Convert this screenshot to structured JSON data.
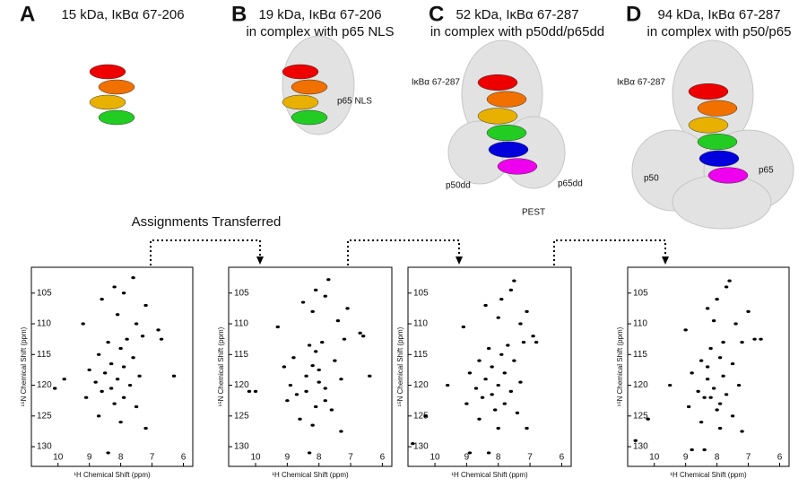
{
  "figure": {
    "annotation": "Assignments Transferred",
    "panels": [
      {
        "letter": "A",
        "title": [
          "15 kDa, IκBα 67-206"
        ],
        "labels": []
      },
      {
        "letter": "B",
        "title": [
          "19 kDa, IκBα 67-206",
          "in complex with p65 NLS"
        ],
        "labels": [
          "p65 NLS"
        ]
      },
      {
        "letter": "C",
        "title": [
          "52 kDa, IκBα 67-287",
          "in complex with p50dd/p65dd"
        ],
        "labels": [
          "IκBα 67-287",
          "p50dd",
          "p65dd",
          "PEST"
        ]
      },
      {
        "letter": "D",
        "title": [
          "94 kDa, IκBα 67-287",
          "in complex with p50/p65"
        ],
        "labels": [
          "IκBα 67-287",
          "p50",
          "p65"
        ]
      }
    ],
    "spectra": [
      {
        "type": "scatter",
        "xlabel": "¹H Chemical Shift (ppm)",
        "ylabel": "¹⁵N Chemical Shift (ppm)",
        "xlim": [
          10.85,
          5.7
        ],
        "ylim": [
          133.2,
          100.8
        ],
        "xticks": [
          10,
          9,
          8,
          7,
          6
        ],
        "yticks": [
          105,
          110,
          115,
          120,
          125,
          130
        ],
        "x": [
          7.6,
          8.2,
          7.9,
          8.6,
          7.2,
          8.1,
          9.2,
          7.5,
          6.8,
          6.7,
          7.3,
          7.8,
          8.4,
          8.0,
          8.7,
          7.6,
          8.3,
          7.9,
          9.0,
          8.5,
          7.4,
          8.1,
          8.8,
          9.8,
          7.7,
          8.3,
          8.6,
          7.9,
          9.1,
          8.2,
          7.5,
          8.7,
          8.0,
          7.2,
          8.4,
          10.1,
          6.3
        ],
        "y": [
          102.5,
          104,
          105,
          106,
          107,
          108.5,
          110,
          110,
          111,
          112.5,
          112,
          112.5,
          113,
          114,
          115,
          115.5,
          116.5,
          117,
          117.5,
          118,
          118.5,
          119,
          119.5,
          119,
          120,
          120.5,
          121,
          122,
          122,
          123,
          123.5,
          125,
          126,
          127,
          131,
          120.5,
          118.5
        ]
      },
      {
        "type": "scatter",
        "xlabel": "¹H Chemical Shift (ppm)",
        "ylabel": "¹⁵N Chemical Shift (ppm)",
        "xlim": [
          10.85,
          5.7
        ],
        "ylim": [
          133.2,
          100.8
        ],
        "xticks": [
          10,
          9,
          8,
          7,
          6
        ],
        "yticks": [
          105,
          110,
          115,
          120,
          125,
          130
        ],
        "x": [
          7.7,
          8.1,
          7.8,
          8.5,
          7.1,
          8.2,
          9.3,
          7.4,
          6.7,
          6.6,
          7.2,
          7.9,
          8.3,
          8.1,
          8.8,
          7.5,
          8.2,
          8.0,
          9.1,
          8.4,
          7.3,
          8.0,
          8.9,
          10.0,
          7.8,
          8.4,
          8.7,
          7.8,
          9.0,
          8.1,
          7.6,
          8.6,
          8.2,
          7.3,
          8.3,
          10.2,
          6.4
        ],
        "y": [
          102.8,
          104.5,
          105.5,
          106.5,
          107.5,
          108,
          110.5,
          109.5,
          111.5,
          112,
          112.5,
          113,
          113.5,
          114.5,
          115.5,
          116,
          116.8,
          117.5,
          117,
          118.5,
          119,
          119.5,
          120,
          121,
          120.5,
          121,
          121.5,
          122.5,
          122.5,
          123.5,
          124,
          125.5,
          126.5,
          127.5,
          131,
          121,
          118.5
        ]
      },
      {
        "type": "scatter",
        "xlabel": "¹H Chemical Shift (ppm)",
        "ylabel": "¹⁵N Chemical Shift (ppm)",
        "xlim": [
          10.85,
          5.7
        ],
        "ylim": [
          133.2,
          100.8
        ],
        "xticks": [
          10,
          9,
          8,
          7,
          6
        ],
        "yticks": [
          105,
          110,
          115,
          120,
          125,
          130
        ],
        "x": [
          7.5,
          7.6,
          7.9,
          8.4,
          7.1,
          8.0,
          9.1,
          7.3,
          6.9,
          6.8,
          7.2,
          7.7,
          8.3,
          7.9,
          8.6,
          7.5,
          8.2,
          7.8,
          8.9,
          8.4,
          7.3,
          8.0,
          8.7,
          9.6,
          7.6,
          8.2,
          8.5,
          7.8,
          9.0,
          8.1,
          7.4,
          8.6,
          8.0,
          7.1,
          8.3,
          10.7,
          10.3,
          8.9
        ],
        "y": [
          103,
          104.5,
          106,
          107,
          108,
          109,
          110.5,
          110,
          112,
          113,
          113,
          113.5,
          114,
          115,
          116,
          116,
          117,
          118,
          118,
          119,
          119.5,
          120,
          120.5,
          120,
          121,
          121.5,
          122,
          123,
          123,
          124,
          124.5,
          125.5,
          127,
          127,
          131,
          129.5,
          125,
          131
        ]
      },
      {
        "type": "scatter",
        "xlabel": "¹H Chemical Shift (ppm)",
        "ylabel": "¹⁵N Chemical Shift (ppm)",
        "xlim": [
          10.85,
          5.7
        ],
        "ylim": [
          133.2,
          100.8
        ],
        "xticks": [
          10,
          9,
          8,
          7,
          6
        ],
        "yticks": [
          105,
          110,
          115,
          120,
          125,
          130
        ],
        "x": [
          7.6,
          7.7,
          8.0,
          8.3,
          7.0,
          8.1,
          9.0,
          7.4,
          6.8,
          6.6,
          7.2,
          7.8,
          8.2,
          7.9,
          8.5,
          7.5,
          8.3,
          7.8,
          8.8,
          8.3,
          7.3,
          8.1,
          8.6,
          9.5,
          7.7,
          8.2,
          8.4,
          7.9,
          8.9,
          8.0,
          7.5,
          8.5,
          7.9,
          7.2,
          8.4,
          10.6,
          10.2,
          8.8
        ],
        "y": [
          103,
          104,
          106,
          107.5,
          108,
          109.5,
          111,
          110,
          112.5,
          112.5,
          113,
          113,
          114,
          115.5,
          116,
          116.5,
          117,
          118.5,
          118,
          119,
          120,
          120.5,
          121,
          120,
          121.5,
          122,
          122,
          123,
          123.5,
          124,
          125,
          126,
          127,
          127.5,
          130.5,
          129,
          125.5,
          130.5
        ]
      }
    ]
  }
}
